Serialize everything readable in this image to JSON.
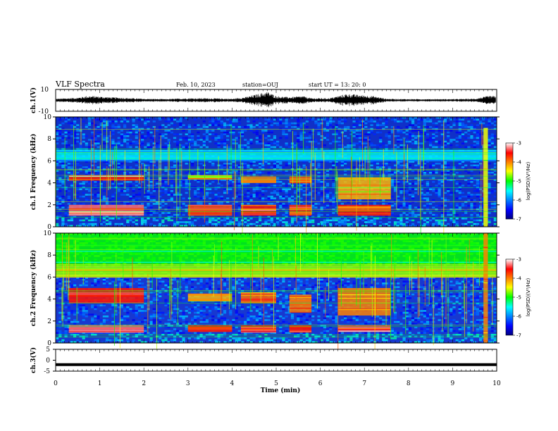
{
  "header": {
    "title": "VLF Spectra",
    "date": "Feb. 10, 2023",
    "station": "station=OUJ",
    "start": "start  UT  =   13: 20: 0"
  },
  "chart_data": [
    {
      "type": "line",
      "panel": "waveform-ch1",
      "ylabel": "ch.1(V)",
      "yticks": [
        "10",
        "-10"
      ],
      "ylim": [
        -10,
        10
      ],
      "xlim": [
        0,
        10
      ],
      "series": [
        {
          "x": [
            0.0,
            0.5,
            0.7,
            0.9,
            1.2,
            1.5,
            2.0,
            2.5,
            3.0,
            3.5,
            4.0,
            4.3,
            4.6,
            4.8,
            5.0,
            5.3,
            5.6,
            5.8,
            6.2,
            6.6,
            6.9,
            7.2,
            7.5,
            8.0,
            8.5,
            9.0,
            9.5,
            9.8
          ],
          "amplitude": [
            1.5,
            2.5,
            4.0,
            4.0,
            3.0,
            2.5,
            1.5,
            1.2,
            2.0,
            2.0,
            1.5,
            3.0,
            6.0,
            8.0,
            4.0,
            3.0,
            4.0,
            2.0,
            2.0,
            6.0,
            5.0,
            4.0,
            1.5,
            1.2,
            1.2,
            1.2,
            1.5,
            4.0
          ]
        }
      ]
    },
    {
      "type": "heatmap",
      "panel": "spectrogram-ch1",
      "ylabel": "ch.1 Frequency (kHz)",
      "ylim": [
        0,
        10
      ],
      "yticks": [
        "0",
        "2",
        "4",
        "6",
        "8",
        "10"
      ],
      "xlim": [
        0,
        10
      ],
      "colorbar": {
        "label": "log(PSD)(V²/Hz)",
        "range": [
          -7,
          -3
        ],
        "ticks": [
          "-3",
          "-4",
          "-5",
          "-6",
          "-7"
        ]
      },
      "bands": [
        {
          "x": [
            0.3,
            2.0
          ],
          "f": [
            4.2,
            4.7
          ],
          "level": -3.5
        },
        {
          "x": [
            0.3,
            2.0
          ],
          "f": [
            1.0,
            2.0
          ],
          "level": -3.3
        },
        {
          "x": [
            3.0,
            4.0
          ],
          "f": [
            4.3,
            4.7
          ],
          "level": -4.3
        },
        {
          "x": [
            3.0,
            4.0
          ],
          "f": [
            1.0,
            2.0
          ],
          "level": -3.8
        },
        {
          "x": [
            4.2,
            5.0
          ],
          "f": [
            4.0,
            4.6
          ],
          "level": -4.0
        },
        {
          "x": [
            4.2,
            5.0
          ],
          "f": [
            1.0,
            2.0
          ],
          "level": -3.6
        },
        {
          "x": [
            5.3,
            5.8
          ],
          "f": [
            4.0,
            4.6
          ],
          "level": -4.0
        },
        {
          "x": [
            5.3,
            5.8
          ],
          "f": [
            1.0,
            2.0
          ],
          "level": -3.7
        },
        {
          "x": [
            6.4,
            7.6
          ],
          "f": [
            2.5,
            4.5
          ],
          "level": -4.2
        },
        {
          "x": [
            6.4,
            7.6
          ],
          "f": [
            1.0,
            2.0
          ],
          "level": -3.6
        },
        {
          "x": [
            0.0,
            10.0
          ],
          "f": [
            6.0,
            7.0
          ],
          "level": -5.6
        },
        {
          "x": [
            9.7,
            9.8
          ],
          "f": [
            0.0,
            9.0
          ],
          "level": -4.5
        }
      ]
    },
    {
      "type": "heatmap",
      "panel": "spectrogram-ch2",
      "ylabel": "ch.2 Frequency (kHz)",
      "ylim": [
        0,
        10
      ],
      "yticks": [
        "0",
        "2",
        "4",
        "6",
        "8",
        "10"
      ],
      "xlim": [
        0,
        10
      ],
      "colorbar": {
        "label": "log(PSD)(V²/Hz)",
        "range": [
          -7,
          -3
        ],
        "ticks": [
          "-3",
          "-4",
          "-5",
          "-6",
          "-7"
        ]
      },
      "bands": [
        {
          "x": [
            0.0,
            10.0
          ],
          "f": [
            6.0,
            7.2
          ],
          "level": -4.7
        },
        {
          "x": [
            0.0,
            10.0
          ],
          "f": [
            7.2,
            10.0
          ],
          "level": -5.0
        },
        {
          "x": [
            0.3,
            2.0
          ],
          "f": [
            3.6,
            5.0
          ],
          "level": -3.6
        },
        {
          "x": [
            0.3,
            2.0
          ],
          "f": [
            1.0,
            1.6
          ],
          "level": -3.3
        },
        {
          "x": [
            3.0,
            4.0
          ],
          "f": [
            3.8,
            4.5
          ],
          "level": -4.2
        },
        {
          "x": [
            3.0,
            4.0
          ],
          "f": [
            1.0,
            1.6
          ],
          "level": -3.6
        },
        {
          "x": [
            4.2,
            5.0
          ],
          "f": [
            3.6,
            4.6
          ],
          "level": -3.9
        },
        {
          "x": [
            4.2,
            5.0
          ],
          "f": [
            1.0,
            1.6
          ],
          "level": -3.5
        },
        {
          "x": [
            5.3,
            5.8
          ],
          "f": [
            2.8,
            4.4
          ],
          "level": -4.0
        },
        {
          "x": [
            5.3,
            5.8
          ],
          "f": [
            1.0,
            1.6
          ],
          "level": -3.6
        },
        {
          "x": [
            6.4,
            7.6
          ],
          "f": [
            2.5,
            5.0
          ],
          "level": -4.0
        },
        {
          "x": [
            6.4,
            7.6
          ],
          "f": [
            1.0,
            1.6
          ],
          "level": -3.4
        },
        {
          "x": [
            9.7,
            9.8
          ],
          "f": [
            0.0,
            10.0
          ],
          "level": -4.0
        }
      ]
    },
    {
      "type": "line",
      "panel": "waveform-ch3",
      "ylabel": "ch.3(V)",
      "yticks": [
        "5",
        "0",
        "-5"
      ],
      "ylim": [
        -5,
        5
      ],
      "xlim": [
        0,
        10
      ],
      "series": [
        {
          "x": [
            0,
            10
          ],
          "y": [
            -2,
            -2
          ]
        }
      ],
      "xlabel": "Time (min)",
      "xticks": [
        "0",
        "1",
        "2",
        "3",
        "4",
        "5",
        "6",
        "7",
        "8",
        "9",
        "10"
      ]
    }
  ]
}
